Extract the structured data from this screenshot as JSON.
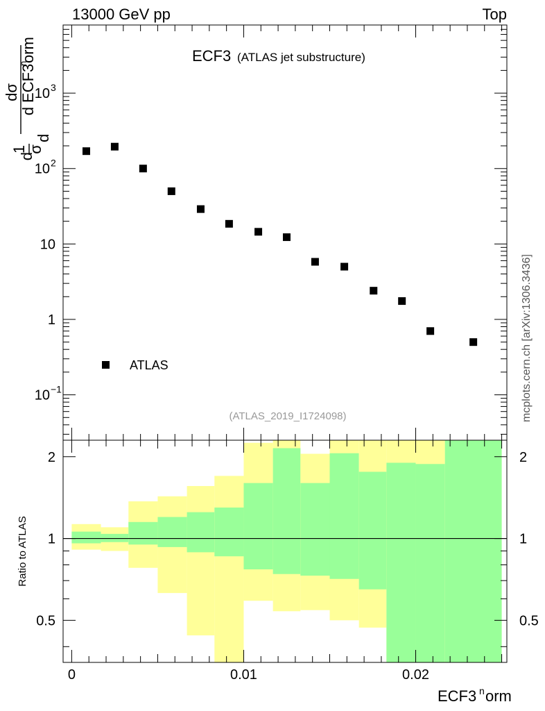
{
  "header": {
    "energy_label": "13000 GeV pp",
    "process_label": "Top"
  },
  "watermark": "mcplots.cern.ch [arXiv:1306.3436]",
  "analysis_id": "(ATLAS_2019_I1724098)",
  "chart_data": [
    {
      "type": "scatter",
      "name": "main-panel",
      "title": "ECF3",
      "subtitle": "(ATLAS jet substructure)",
      "ylabel": "1/σ dσ/d ECF3^norm",
      "yscale": "log",
      "xlim": [
        -0.0005,
        0.0253
      ],
      "ylim": [
        0.025,
        8000
      ],
      "ytick_labels": [
        {
          "value": 1000,
          "base": "10",
          "exp": "3"
        },
        {
          "value": 100,
          "base": "10",
          "exp": "2"
        },
        {
          "value": 10,
          "base": "10",
          "exp": ""
        },
        {
          "value": 1,
          "base": "1",
          "exp": ""
        },
        {
          "value": 0.1,
          "base": "10",
          "exp": "−1"
        }
      ],
      "legend": {
        "position": "bottom-left",
        "entries": [
          "ATLAS"
        ]
      },
      "series": [
        {
          "name": "ATLAS",
          "x": [
            0.00085,
            0.0025,
            0.00415,
            0.0058,
            0.0075,
            0.00915,
            0.01085,
            0.0125,
            0.01415,
            0.01585,
            0.01755,
            0.0192,
            0.02085,
            0.02335
          ],
          "y": [
            170,
            195,
            100,
            50,
            29,
            18.5,
            14.5,
            12.3,
            5.8,
            5.0,
            2.4,
            1.75,
            0.7,
            0.5
          ]
        }
      ]
    },
    {
      "type": "area",
      "name": "ratio-panel",
      "ylabel": "Ratio to ATLAS",
      "xlabel_base": "ECF3",
      "xlabel_sup": "n",
      "xlabel_rest": "orm",
      "yscale": "log",
      "xlim": [
        -0.0005,
        0.0253
      ],
      "ylim": [
        0.35,
        2.3
      ],
      "ytick_labels": [
        "2",
        "1",
        "0.5"
      ],
      "ytick_values": [
        2,
        1,
        0.5
      ],
      "xtick_labels": [
        "0",
        "0.01",
        "0.02"
      ],
      "xtick_values": [
        0,
        0.01,
        0.02
      ],
      "bins": [
        0,
        0.0017,
        0.0033,
        0.005,
        0.0067,
        0.0083,
        0.01,
        0.0117,
        0.0133,
        0.015,
        0.0167,
        0.0183,
        0.02,
        0.0217,
        0.025
      ],
      "stat_band": {
        "color": "#99ff99",
        "low": [
          0.96,
          0.97,
          0.95,
          0.93,
          0.89,
          0.86,
          0.77,
          0.74,
          0.73,
          0.71,
          0.65,
          0.35,
          0.35,
          0.35
        ],
        "high": [
          1.06,
          1.04,
          1.15,
          1.2,
          1.25,
          1.3,
          1.6,
          2.15,
          1.6,
          2.06,
          1.76,
          1.9,
          1.88,
          2.3
        ]
      },
      "total_band": {
        "color": "#ffff99",
        "low": [
          0.91,
          0.9,
          0.78,
          0.63,
          0.44,
          0.35,
          0.59,
          0.54,
          0.545,
          0.5,
          0.47,
          0.35,
          0.37,
          0.35
        ],
        "high": [
          1.13,
          1.1,
          1.37,
          1.43,
          1.56,
          1.7,
          2.25,
          2.3,
          2.05,
          2.3,
          2.3,
          2.3,
          2.3,
          2.3
        ]
      },
      "reference_line": 1
    }
  ]
}
